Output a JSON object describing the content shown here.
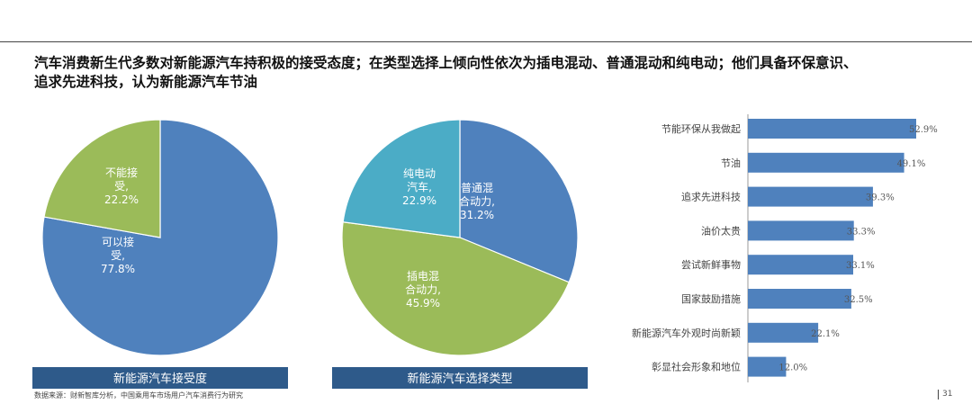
{
  "header": {
    "title_line1": "汽车消费新生代多数对新能源汽车持积极的接受态度；在类型选择上倾向性依次为插电混动、普通混动和纯电动；他们具备环保意识、",
    "title_line2": "追求先进科技，认为新能源汽车节油"
  },
  "footer": {
    "source": "数据来源：财新智库分析，中国乘用车市场用户汽车消费行为研究",
    "page": "31"
  },
  "colors": {
    "blue": "#4f81bd",
    "green": "#9bbb59",
    "teal": "#4bacc6",
    "caption_bg": "#2e5a8a",
    "bar": "#4f81bd"
  },
  "chart_data": [
    {
      "type": "pie",
      "title": "新能源汽车接受度",
      "slices": [
        {
          "label_lines": [
            "可以接",
            "受,",
            "77.8%"
          ],
          "value": 77.8,
          "color": "#4f81bd"
        },
        {
          "label_lines": [
            "不能接",
            "受,",
            "22.2%"
          ],
          "value": 22.2,
          "color": "#9bbb59"
        }
      ]
    },
    {
      "type": "pie",
      "title": "新能源汽车选择类型",
      "slices": [
        {
          "label_lines": [
            "普通混",
            "合动力,",
            "31.2%"
          ],
          "value": 31.2,
          "color": "#4f81bd"
        },
        {
          "label_lines": [
            "插电混",
            "合动力,",
            "45.9%"
          ],
          "value": 45.9,
          "color": "#9bbb59"
        },
        {
          "label_lines": [
            "纯电动",
            "汽车,",
            "22.9%"
          ],
          "value": 22.9,
          "color": "#4bacc6"
        }
      ]
    },
    {
      "type": "bar",
      "orientation": "horizontal",
      "categories": [
        "节能环保从我做起",
        "节油",
        "追求先进科技",
        "油价太贵",
        "尝试新鲜事物",
        "国家鼓励措施",
        "新能源汽车外观时尚新颖",
        "彰显社会形象和地位"
      ],
      "values": [
        52.9,
        49.1,
        39.3,
        33.3,
        33.1,
        32.5,
        22.1,
        12.0
      ],
      "value_labels": [
        "52.9%",
        "49.1%",
        "39.3%",
        "33.3%",
        "33.1%",
        "32.5%",
        "22.1%",
        "12.0%"
      ],
      "xlim": [
        0,
        60
      ]
    }
  ]
}
